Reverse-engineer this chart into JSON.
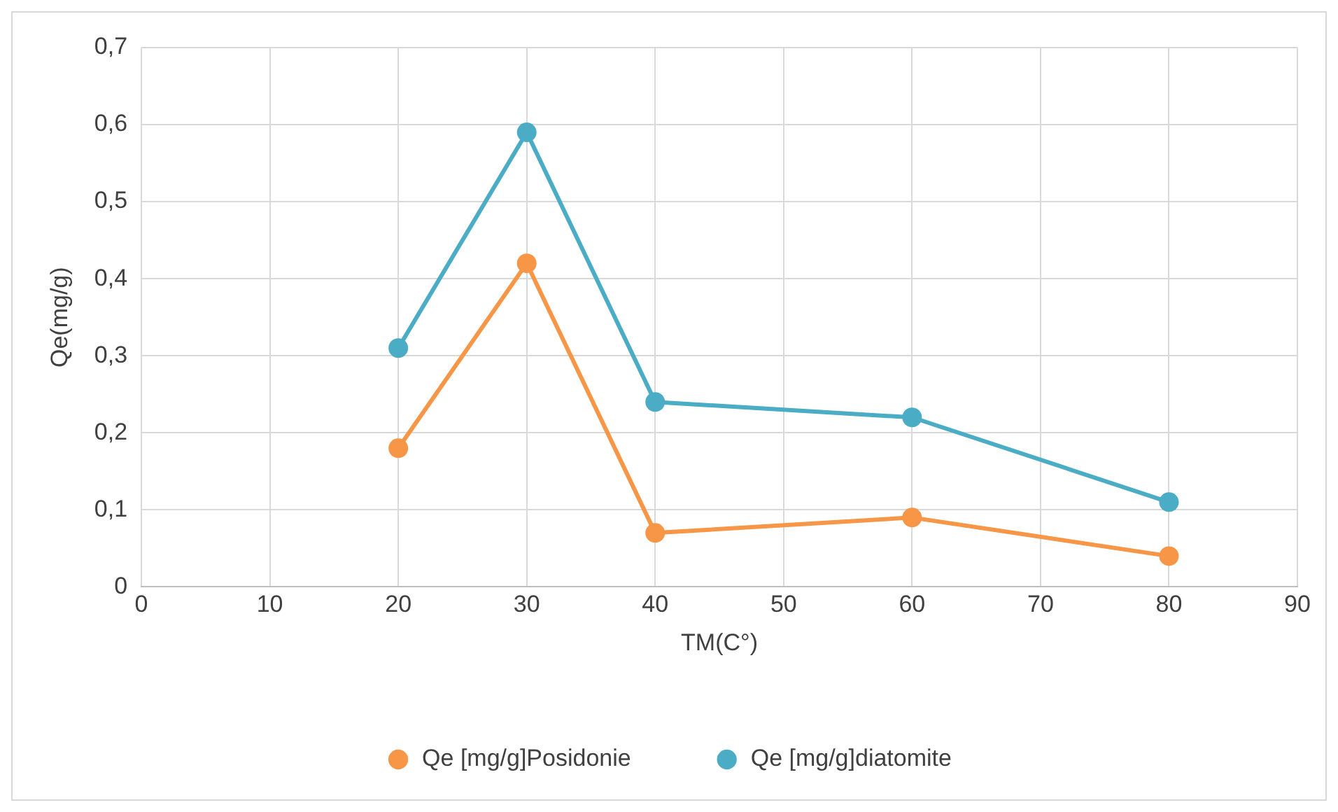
{
  "chart_data": {
    "type": "line",
    "xlabel": "TM(C°)",
    "ylabel": "Qe(mg/g)",
    "x": [
      20,
      30,
      40,
      60,
      80
    ],
    "series": [
      {
        "name": "Qe [mg/g]Posidonie",
        "color": "#f79646",
        "values": [
          0.18,
          0.42,
          0.07,
          0.09,
          0.04
        ]
      },
      {
        "name": "Qe [mg/g]diatomite",
        "color": "#4bacc6",
        "values": [
          0.31,
          0.59,
          0.24,
          0.22,
          0.11
        ]
      }
    ],
    "xlim": [
      0,
      90
    ],
    "xticks": [
      0,
      10,
      20,
      30,
      40,
      50,
      60,
      70,
      80,
      90
    ],
    "ylim": [
      0,
      0.7
    ],
    "yticks": [
      0,
      {
        "value": 0.1,
        "label": "0,1"
      },
      {
        "value": 0.2,
        "label": "0,2"
      },
      {
        "value": 0.3,
        "label": "0,3"
      },
      {
        "value": 0.4,
        "label": "0,4"
      },
      {
        "value": 0.5,
        "label": "0,5"
      },
      {
        "value": 0.6,
        "label": "0,6"
      },
      {
        "value": 0.7,
        "label": "0,7"
      }
    ],
    "grid": true,
    "legend": "bottom",
    "marker": "circle",
    "line_style": "solid"
  }
}
